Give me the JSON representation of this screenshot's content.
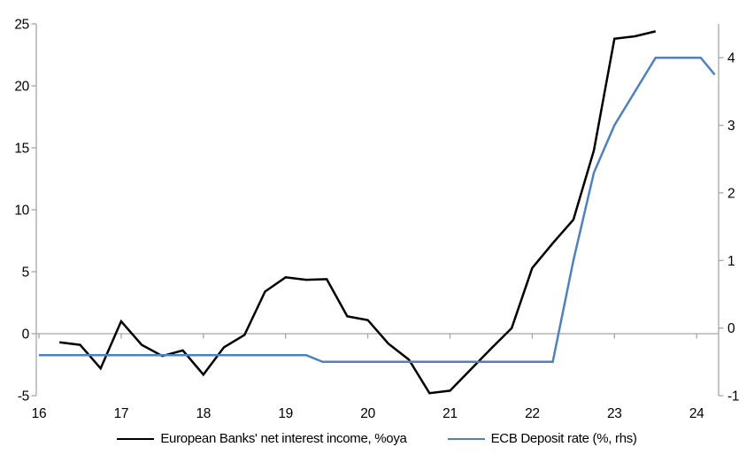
{
  "chart_data": {
    "type": "line",
    "title": "",
    "x_axis": {
      "range": [
        16,
        24.27
      ],
      "ticks": [
        16,
        17,
        18,
        19,
        20,
        21,
        22,
        23,
        24
      ],
      "tick_labels": [
        "16",
        "17",
        "18",
        "19",
        "20",
        "21",
        "22",
        "23",
        "24"
      ]
    },
    "left_axis": {
      "range": [
        -5,
        25
      ],
      "ticks": [
        -5,
        0,
        5,
        10,
        15,
        20,
        25
      ],
      "tick_labels": [
        "-5",
        "0",
        "5",
        "10",
        "15",
        "20",
        "25"
      ]
    },
    "right_axis": {
      "range": [
        -1,
        4.5
      ],
      "ticks": [
        -1,
        0,
        1,
        2,
        3,
        4
      ],
      "tick_labels": [
        "-1",
        "0",
        "1",
        "2",
        "3",
        "4"
      ]
    },
    "grid": "zero-line-only",
    "legend_position": "bottom-center",
    "axis_color": "#a6a6a6",
    "series": [
      {
        "name": "European Banks' net interest income, %oya",
        "color": "#000000",
        "axis": "left",
        "points": [
          [
            16.25,
            -0.7
          ],
          [
            16.5,
            -0.9
          ],
          [
            16.75,
            -2.8
          ],
          [
            17.0,
            1.0
          ],
          [
            17.25,
            -0.9
          ],
          [
            17.5,
            -1.8
          ],
          [
            17.75,
            -1.35
          ],
          [
            18.0,
            -3.3
          ],
          [
            18.25,
            -1.1
          ],
          [
            18.5,
            -0.1
          ],
          [
            18.75,
            3.4
          ],
          [
            19.0,
            4.55
          ],
          [
            19.25,
            4.35
          ],
          [
            19.5,
            4.4
          ],
          [
            19.75,
            1.4
          ],
          [
            20.0,
            1.1
          ],
          [
            20.25,
            -0.8
          ],
          [
            20.5,
            -2.1
          ],
          [
            20.75,
            -4.8
          ],
          [
            21.0,
            -4.6
          ],
          [
            21.25,
            -2.9
          ],
          [
            21.5,
            -1.2
          ],
          [
            21.75,
            0.45
          ],
          [
            22.0,
            5.3
          ],
          [
            22.25,
            7.3
          ],
          [
            22.5,
            9.2
          ],
          [
            22.75,
            14.8
          ],
          [
            23.0,
            23.8
          ],
          [
            23.25,
            24.0
          ],
          [
            23.5,
            24.4
          ]
        ]
      },
      {
        "name": "ECB Deposit rate (%, rhs)",
        "color": "#4e81bd",
        "axis": "right",
        "points": [
          [
            16.0,
            -0.4
          ],
          [
            19.25,
            -0.4
          ],
          [
            19.45,
            -0.5
          ],
          [
            22.25,
            -0.5
          ],
          [
            22.5,
            1.0
          ],
          [
            22.75,
            2.3
          ],
          [
            23.0,
            3.0
          ],
          [
            23.25,
            3.5
          ],
          [
            23.5,
            4.0
          ],
          [
            24.05,
            4.0
          ],
          [
            24.22,
            3.75
          ]
        ]
      }
    ]
  }
}
